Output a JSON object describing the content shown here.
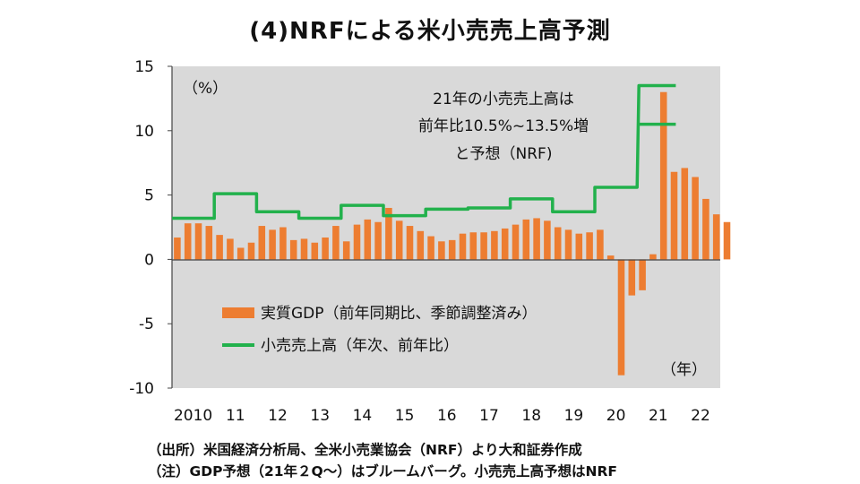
{
  "title": "(4)NRFによる米小売売上高予測",
  "source": "（出所）米国経済分析局、全米小売業協会（NRF）より大和証券作成",
  "note": "（注）GDP予想（21年２Q～）はブルームバーグ。小売売上高予想はNRF",
  "chart_data": {
    "type": "bar",
    "title": "(4)NRFによる米小売売上高予測",
    "xlabel": "（年）",
    "ylabel": "（%）",
    "ylim": [
      -10,
      15
    ],
    "yticks": [
      15,
      10,
      5,
      0,
      -5,
      -10
    ],
    "x_tick_labels": [
      "2010",
      "11",
      "12",
      "13",
      "14",
      "15",
      "16",
      "17",
      "18",
      "19",
      "20",
      "21",
      "22"
    ],
    "grid": false,
    "legend_position": "bottom-left",
    "colors": {
      "bar": "#ED7D31",
      "line": "#22B14C",
      "plot_bg": "#D9D9D9"
    },
    "series": [
      {
        "name": "実質GDP（前年同期比、季節調整済み）",
        "kind": "bar",
        "values": [
          1.7,
          2.8,
          2.8,
          2.6,
          1.9,
          1.6,
          0.9,
          1.3,
          2.6,
          2.3,
          2.5,
          1.5,
          1.6,
          1.3,
          1.7,
          2.6,
          1.4,
          2.7,
          3.1,
          2.9,
          4.0,
          3.0,
          2.6,
          2.2,
          1.8,
          1.4,
          1.5,
          2.0,
          2.1,
          2.1,
          2.2,
          2.4,
          2.7,
          3.1,
          3.2,
          3.0,
          2.5,
          2.3,
          2.0,
          2.1,
          2.3,
          0.3,
          -9.0,
          -2.8,
          -2.4,
          0.4,
          13.0,
          6.8,
          7.1,
          6.4,
          4.7,
          3.5,
          2.9
        ]
      },
      {
        "name": "小売売上高（年次、前年比）",
        "kind": "line",
        "annual_values": [
          {
            "year": "2010",
            "value": 3.2
          },
          {
            "year": "11",
            "value": 5.1
          },
          {
            "year": "12",
            "value": 3.7
          },
          {
            "year": "13",
            "value": 3.2
          },
          {
            "year": "14",
            "value": 4.2
          },
          {
            "year": "15",
            "value": 3.4
          },
          {
            "year": "16",
            "value": 3.9
          },
          {
            "year": "17",
            "value": 4.0
          },
          {
            "year": "18",
            "value": 4.7
          },
          {
            "year": "19",
            "value": 3.7
          },
          {
            "year": "20",
            "value": 5.6
          },
          {
            "year": "21",
            "value_low": 10.5,
            "value_high": 13.5
          }
        ]
      }
    ],
    "annotation": [
      "21年の小売売上高は",
      "前年比10.5%~13.5%増",
      "と予想（NRF)"
    ]
  }
}
